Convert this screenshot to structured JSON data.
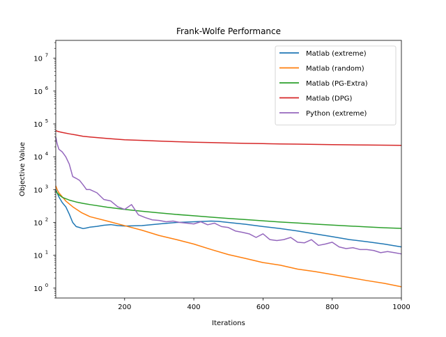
{
  "chart_data": {
    "type": "line",
    "title": "Frank-Wolfe Performance",
    "xlabel": "Iterations",
    "ylabel": "Objective Value",
    "xlim": [
      1,
      1000
    ],
    "ylim": [
      0.5,
      35000000
    ],
    "yscale": "log",
    "grid": false,
    "legend_position": "top-right",
    "x_ticks": [
      200,
      400,
      600,
      800,
      1000
    ],
    "x_tick_labels": [
      "200",
      "400",
      "600",
      "800",
      "1000"
    ],
    "y_ticks": [
      1,
      10,
      100,
      1000,
      10000,
      100000,
      1000000,
      10000000
    ],
    "y_tick_labels": [
      "10",
      "10",
      "10",
      "10",
      "10",
      "10",
      "10",
      "10"
    ],
    "y_tick_exponents": [
      "0",
      "1",
      "2",
      "3",
      "4",
      "5",
      "6",
      "7"
    ],
    "series": [
      {
        "name": "Matlab (extreme)",
        "color": "#1f77b4",
        "x": [
          1,
          10,
          20,
          30,
          40,
          50,
          60,
          70,
          80,
          90,
          100,
          120,
          140,
          160,
          180,
          200,
          250,
          300,
          350,
          400,
          450,
          470,
          500,
          550,
          600,
          650,
          700,
          750,
          800,
          850,
          900,
          950,
          1000
        ],
        "y": [
          1000,
          600,
          400,
          300,
          180,
          100,
          75,
          70,
          65,
          68,
          72,
          76,
          82,
          86,
          80,
          78,
          80,
          90,
          100,
          105,
          110,
          108,
          100,
          88,
          75,
          65,
          55,
          45,
          37,
          30,
          26,
          22,
          18
        ]
      },
      {
        "name": "Matlab (random)",
        "color": "#ff7f0e",
        "x": [
          1,
          5,
          10,
          20,
          30,
          50,
          75,
          100,
          150,
          200,
          250,
          300,
          350,
          400,
          450,
          500,
          550,
          600,
          650,
          700,
          750,
          800,
          850,
          900,
          950,
          1000
        ],
        "y": [
          1300,
          1000,
          800,
          600,
          450,
          300,
          200,
          150,
          110,
          80,
          58,
          40,
          30,
          22,
          15,
          10.5,
          8,
          6,
          5,
          3.8,
          3.2,
          2.6,
          2.1,
          1.7,
          1.4,
          1.1
        ]
      },
      {
        "name": "Matlab (PG-Extra)",
        "color": "#2ca02c",
        "x": [
          1,
          10,
          20,
          40,
          60,
          80,
          100,
          150,
          200,
          250,
          300,
          350,
          400,
          450,
          500,
          550,
          600,
          650,
          700,
          750,
          800,
          850,
          900,
          950,
          1000
        ],
        "y": [
          900,
          700,
          580,
          480,
          420,
          380,
          350,
          290,
          250,
          220,
          195,
          175,
          160,
          145,
          132,
          122,
          112,
          103,
          96,
          89,
          83,
          78,
          73,
          69,
          66
        ]
      },
      {
        "name": "Matlab (DPG)",
        "color": "#d62728",
        "x": [
          1,
          10,
          20,
          40,
          60,
          80,
          100,
          150,
          200,
          250,
          300,
          350,
          400,
          450,
          500,
          550,
          600,
          650,
          700,
          750,
          800,
          850,
          900,
          950,
          1000
        ],
        "y": [
          62000,
          58000,
          55000,
          50000,
          46000,
          42000,
          40000,
          36000,
          33000,
          31500,
          30000,
          28800,
          27800,
          27000,
          26300,
          25700,
          25100,
          24600,
          24200,
          23800,
          23400,
          23100,
          22800,
          22500,
          22200
        ]
      },
      {
        "name": "Python (extreme)",
        "color": "#9467bd",
        "x": [
          1,
          5,
          10,
          20,
          30,
          40,
          50,
          60,
          70,
          80,
          90,
          100,
          120,
          140,
          160,
          180,
          200,
          220,
          240,
          260,
          280,
          300,
          320,
          340,
          360,
          380,
          400,
          420,
          440,
          460,
          480,
          500,
          520,
          540,
          560,
          580,
          600,
          620,
          640,
          660,
          680,
          700,
          720,
          740,
          760,
          780,
          800,
          820,
          840,
          860,
          880,
          900,
          920,
          940,
          960,
          980,
          1000
        ],
        "y": [
          40000,
          25000,
          17000,
          14000,
          10000,
          6000,
          2500,
          2200,
          1900,
          1400,
          1000,
          1000,
          800,
          500,
          450,
          300,
          250,
          350,
          170,
          140,
          120,
          115,
          105,
          110,
          100,
          95,
          90,
          105,
          85,
          95,
          75,
          70,
          55,
          50,
          45,
          35,
          45,
          30,
          28,
          30,
          35,
          25,
          24,
          30,
          20,
          22,
          25,
          18,
          16,
          17,
          15,
          15,
          14,
          12,
          13,
          12,
          11
        ]
      }
    ]
  }
}
